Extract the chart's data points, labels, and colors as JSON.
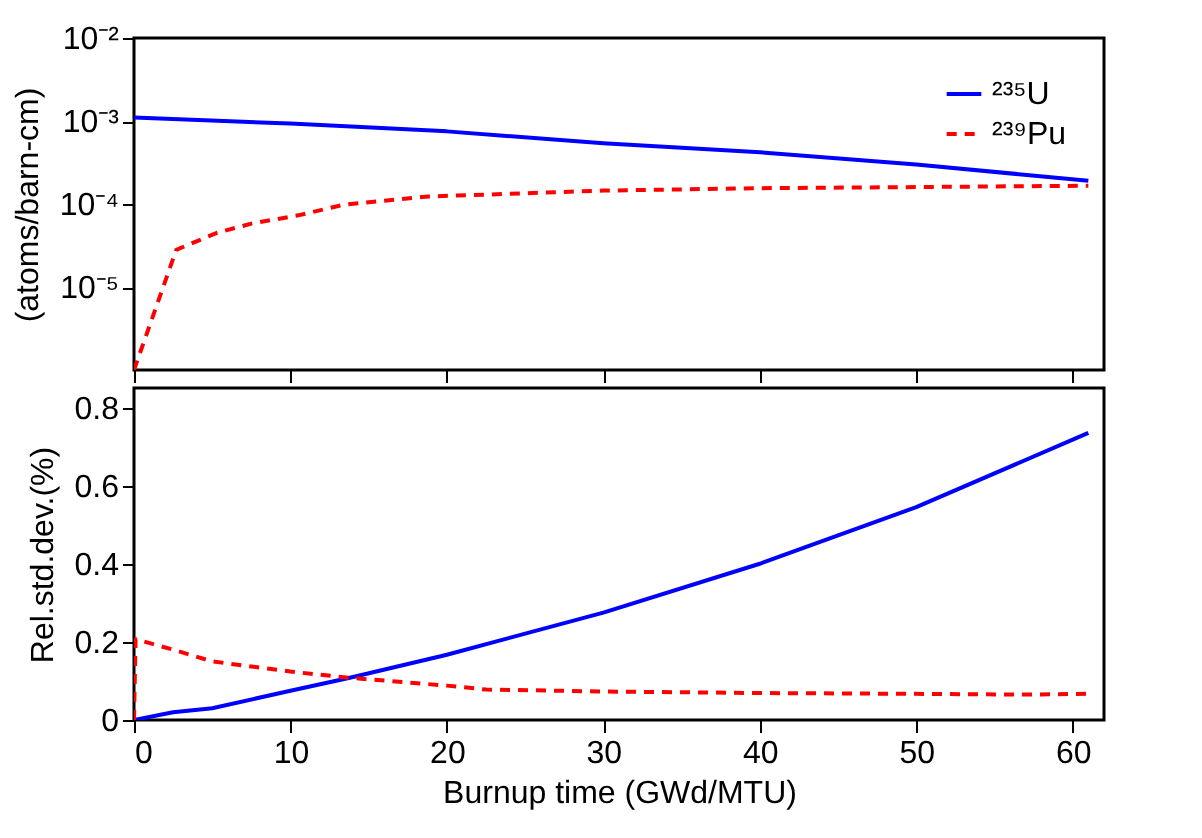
{
  "chart_data": [
    {
      "type": "line",
      "ylabel": "(atoms/barn-cm)",
      "log": "y",
      "xlim": [
        0,
        62
      ],
      "xticks": [
        0,
        10,
        20,
        30,
        40,
        50,
        60
      ],
      "ylim": [
        1e-06,
        0.01
      ],
      "yticks": [
        {
          "value": 0.01,
          "label": "10⁻²"
        },
        {
          "value": 0.001,
          "label": "10⁻³"
        },
        {
          "value": 0.0001,
          "label": "10⁻⁴"
        },
        {
          "value": 1e-05,
          "label": "10⁻⁵"
        }
      ],
      "tick_labels": "y",
      "legend": "top right",
      "grid": false,
      "series": [
        {
          "name": "²³⁵U",
          "color": "#0000ff",
          "line_style": "solid",
          "x": [
            0,
            10,
            20,
            30,
            40,
            50,
            61
          ],
          "values": [
            0.0011,
            0.00093,
            0.00075,
            0.00054,
            0.00042,
            0.0003,
            0.00019
          ]
        },
        {
          "name": "²³⁹Pu",
          "color": "#ff0000",
          "line_style": "dashed",
          "x": [
            0,
            2.7,
            5.3,
            7.5,
            10.5,
            13.4,
            18.8,
            30,
            40,
            50,
            61
          ],
          "values": [
            1e-06,
            2.8e-05,
            4.5e-05,
            5.8e-05,
            7.3e-05,
            9.8e-05,
            0.000123,
            0.000145,
            0.000155,
            0.00016,
            0.000166
          ]
        }
      ]
    },
    {
      "type": "line",
      "xlabel": "Burnup time (GWd/MTU)",
      "ylabel": "Rel.std.dev.(%)",
      "xlim": [
        0,
        62
      ],
      "xticks": [
        0,
        10,
        20,
        30,
        40,
        50,
        60
      ],
      "ylim": [
        0,
        0.85
      ],
      "yticks": [
        0,
        0.2,
        0.4,
        0.6,
        0.8
      ],
      "grid": false,
      "series": [
        {
          "color": "#0000ff",
          "line_style": "solid",
          "x": [
            0,
            2.5,
            5,
            10,
            13.8,
            20,
            30,
            40,
            50,
            61
          ],
          "values": [
            0,
            0.02,
            0.03,
            0.075,
            0.108,
            0.167,
            0.275,
            0.4,
            0.545,
            0.735
          ]
        },
        {
          "color": "#ff0000",
          "line_style": "dashed",
          "x": [
            0,
            0.1,
            2.5,
            5,
            10,
            13.8,
            20,
            22.5,
            30,
            40,
            50,
            57,
            61
          ],
          "values": [
            0,
            0.207,
            0.18,
            0.15,
            0.124,
            0.108,
            0.088,
            0.078,
            0.073,
            0.069,
            0.067,
            0.065,
            0.067
          ]
        }
      ]
    }
  ]
}
